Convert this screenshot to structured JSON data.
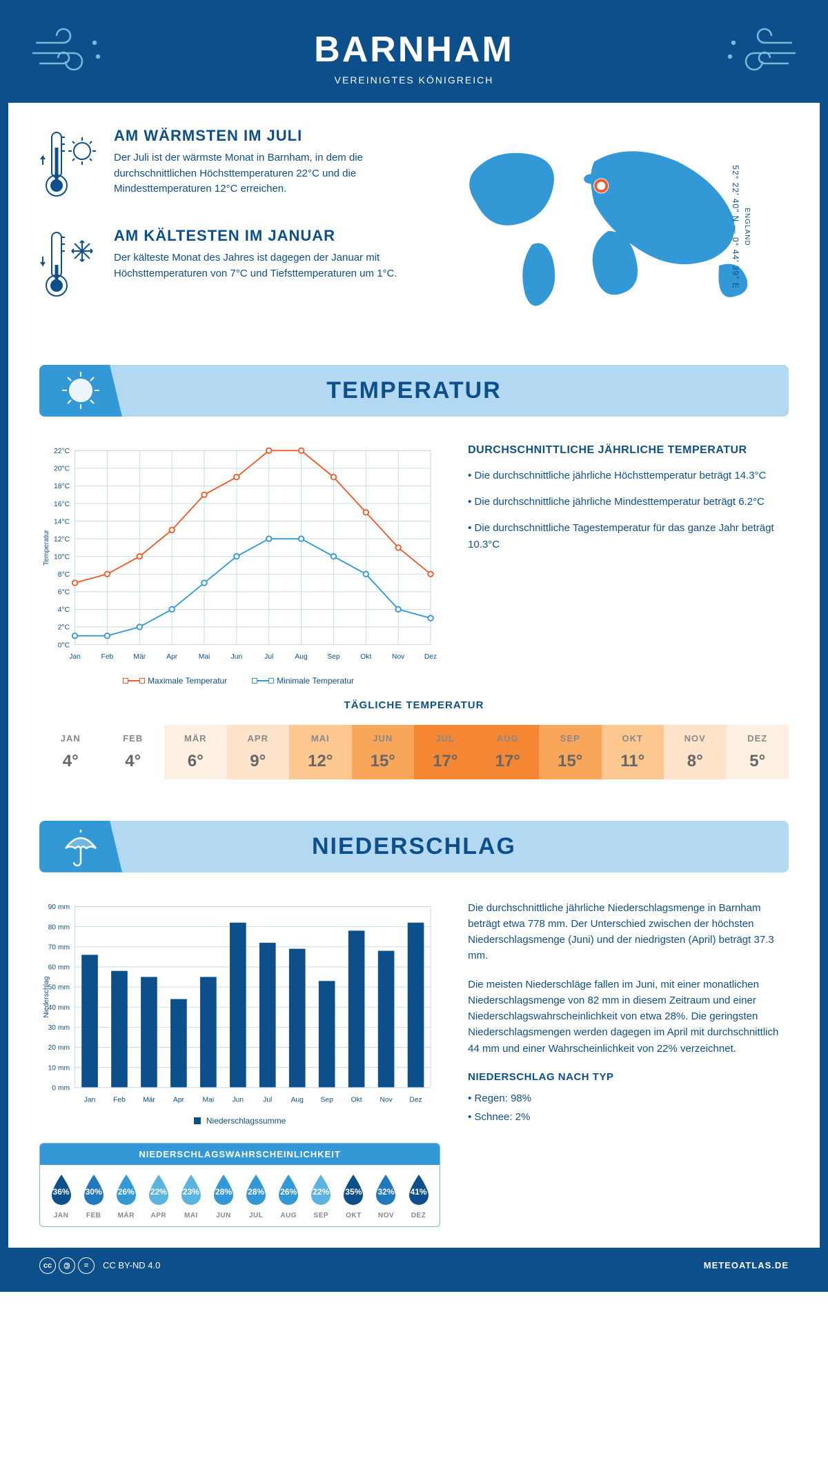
{
  "colors": {
    "primary": "#0d4f8b",
    "accent": "#3399d6",
    "light_blue": "#b3d9f2",
    "orange": "#f15a29",
    "grid": "#c5d9e8",
    "white": "#ffffff"
  },
  "header": {
    "title": "BARNHAM",
    "subtitle": "VEREINIGTES KÖNIGREICH"
  },
  "coords": {
    "region": "ENGLAND",
    "text": "52° 22' 40\" N — 0° 44' 39\" E"
  },
  "warm": {
    "title": "AM WÄRMSTEN IM JULI",
    "text": "Der Juli ist der wärmste Monat in Barnham, in dem die durchschnittlichen Höchsttemperaturen 22°C und die Mindesttemperaturen 12°C erreichen."
  },
  "cold": {
    "title": "AM KÄLTESTEN IM JANUAR",
    "text": "Der kälteste Monat des Jahres ist dagegen der Januar mit Höchsttemperaturen von 7°C und Tiefsttemperaturen um 1°C."
  },
  "temperature": {
    "banner_title": "TEMPERATUR",
    "side_title": "DURCHSCHNITTLICHE JÄHRLICHE TEMPERATUR",
    "bullet1": "• Die durchschnittliche jährliche Höchsttemperatur beträgt 14.3°C",
    "bullet2": "• Die durchschnittliche jährliche Mindesttemperatur beträgt 6.2°C",
    "bullet3": "• Die durchschnittliche Tagestemperatur für das ganze Jahr beträgt 10.3°C",
    "chart": {
      "ylabel": "Temperatur",
      "months": [
        "Jan",
        "Feb",
        "Mär",
        "Apr",
        "Mai",
        "Jun",
        "Jul",
        "Aug",
        "Sep",
        "Okt",
        "Nov",
        "Dez"
      ],
      "max_series": [
        7,
        8,
        10,
        13,
        17,
        19,
        22,
        22,
        19,
        15,
        11,
        8
      ],
      "min_series": [
        1,
        1,
        2,
        4,
        7,
        10,
        12,
        12,
        10,
        8,
        4,
        3
      ],
      "max_color": "#f15a29",
      "min_color": "#3399d6",
      "ylim": [
        0,
        22
      ],
      "ytick_step": 2,
      "grid_color": "#c5d9e8",
      "legend_max": "Maximale Temperatur",
      "legend_min": "Minimale Temperatur"
    },
    "daily": {
      "title": "TÄGLICHE TEMPERATUR",
      "months": [
        "JAN",
        "FEB",
        "MÄR",
        "APR",
        "MAI",
        "JUN",
        "JUL",
        "AUG",
        "SEP",
        "OKT",
        "NOV",
        "DEZ"
      ],
      "values": [
        "4°",
        "4°",
        "6°",
        "9°",
        "12°",
        "15°",
        "17°",
        "17°",
        "15°",
        "11°",
        "8°",
        "5°"
      ],
      "colors": [
        "#ffffff",
        "#ffffff",
        "#fdf0e2",
        "#fde3c9",
        "#fcc88f",
        "#f9a65a",
        "#f58634",
        "#f58634",
        "#f9a65a",
        "#fcc88f",
        "#fde3c9",
        "#fdf0e2"
      ]
    }
  },
  "precipitation": {
    "banner_title": "NIEDERSCHLAG",
    "text1": "Die durchschnittliche jährliche Niederschlagsmenge in Barnham beträgt etwa 778 mm. Der Unterschied zwischen der höchsten Niederschlagsmenge (Juni) und der niedrigsten (April) beträgt 37.3 mm.",
    "text2": "Die meisten Niederschläge fallen im Juni, mit einer monatlichen Niederschlagsmenge von 82 mm in diesem Zeitraum und einer Niederschlagswahrscheinlichkeit von etwa 28%. Die geringsten Niederschlagsmengen werden dagegen im April mit durchschnittlich 44 mm und einer Wahrscheinlichkeit von 22% verzeichnet.",
    "type_title": "NIEDERSCHLAG NACH TYP",
    "type1": "• Regen: 98%",
    "type2": "• Schnee: 2%",
    "chart": {
      "ylabel": "Niederschlag",
      "months": [
        "Jan",
        "Feb",
        "Mär",
        "Apr",
        "Mai",
        "Jun",
        "Jul",
        "Aug",
        "Sep",
        "Okt",
        "Nov",
        "Dez"
      ],
      "values": [
        66,
        58,
        55,
        44,
        55,
        82,
        72,
        69,
        53,
        78,
        68,
        82
      ],
      "bar_color": "#0d4f8b",
      "ylim": [
        0,
        90
      ],
      "ytick_step": 10,
      "grid_color": "#c5d9e8",
      "legend": "Niederschlagssumme"
    },
    "probability": {
      "title": "NIEDERSCHLAGSWAHRSCHEINLICHKEIT",
      "months": [
        "JAN",
        "FEB",
        "MÄR",
        "APR",
        "MAI",
        "JUN",
        "JUL",
        "AUG",
        "SEP",
        "OKT",
        "NOV",
        "DEZ"
      ],
      "values": [
        "36%",
        "30%",
        "26%",
        "22%",
        "23%",
        "28%",
        "28%",
        "26%",
        "22%",
        "35%",
        "32%",
        "41%"
      ],
      "colors": [
        "#0d4f8b",
        "#2178bd",
        "#3399d6",
        "#5bb3e0",
        "#5bb3e0",
        "#3399d6",
        "#3399d6",
        "#3399d6",
        "#5bb3e0",
        "#0d4f8b",
        "#2178bd",
        "#0d4f8b"
      ]
    }
  },
  "footer": {
    "license": "CC BY-ND 4.0",
    "site": "METEOATLAS.DE"
  }
}
